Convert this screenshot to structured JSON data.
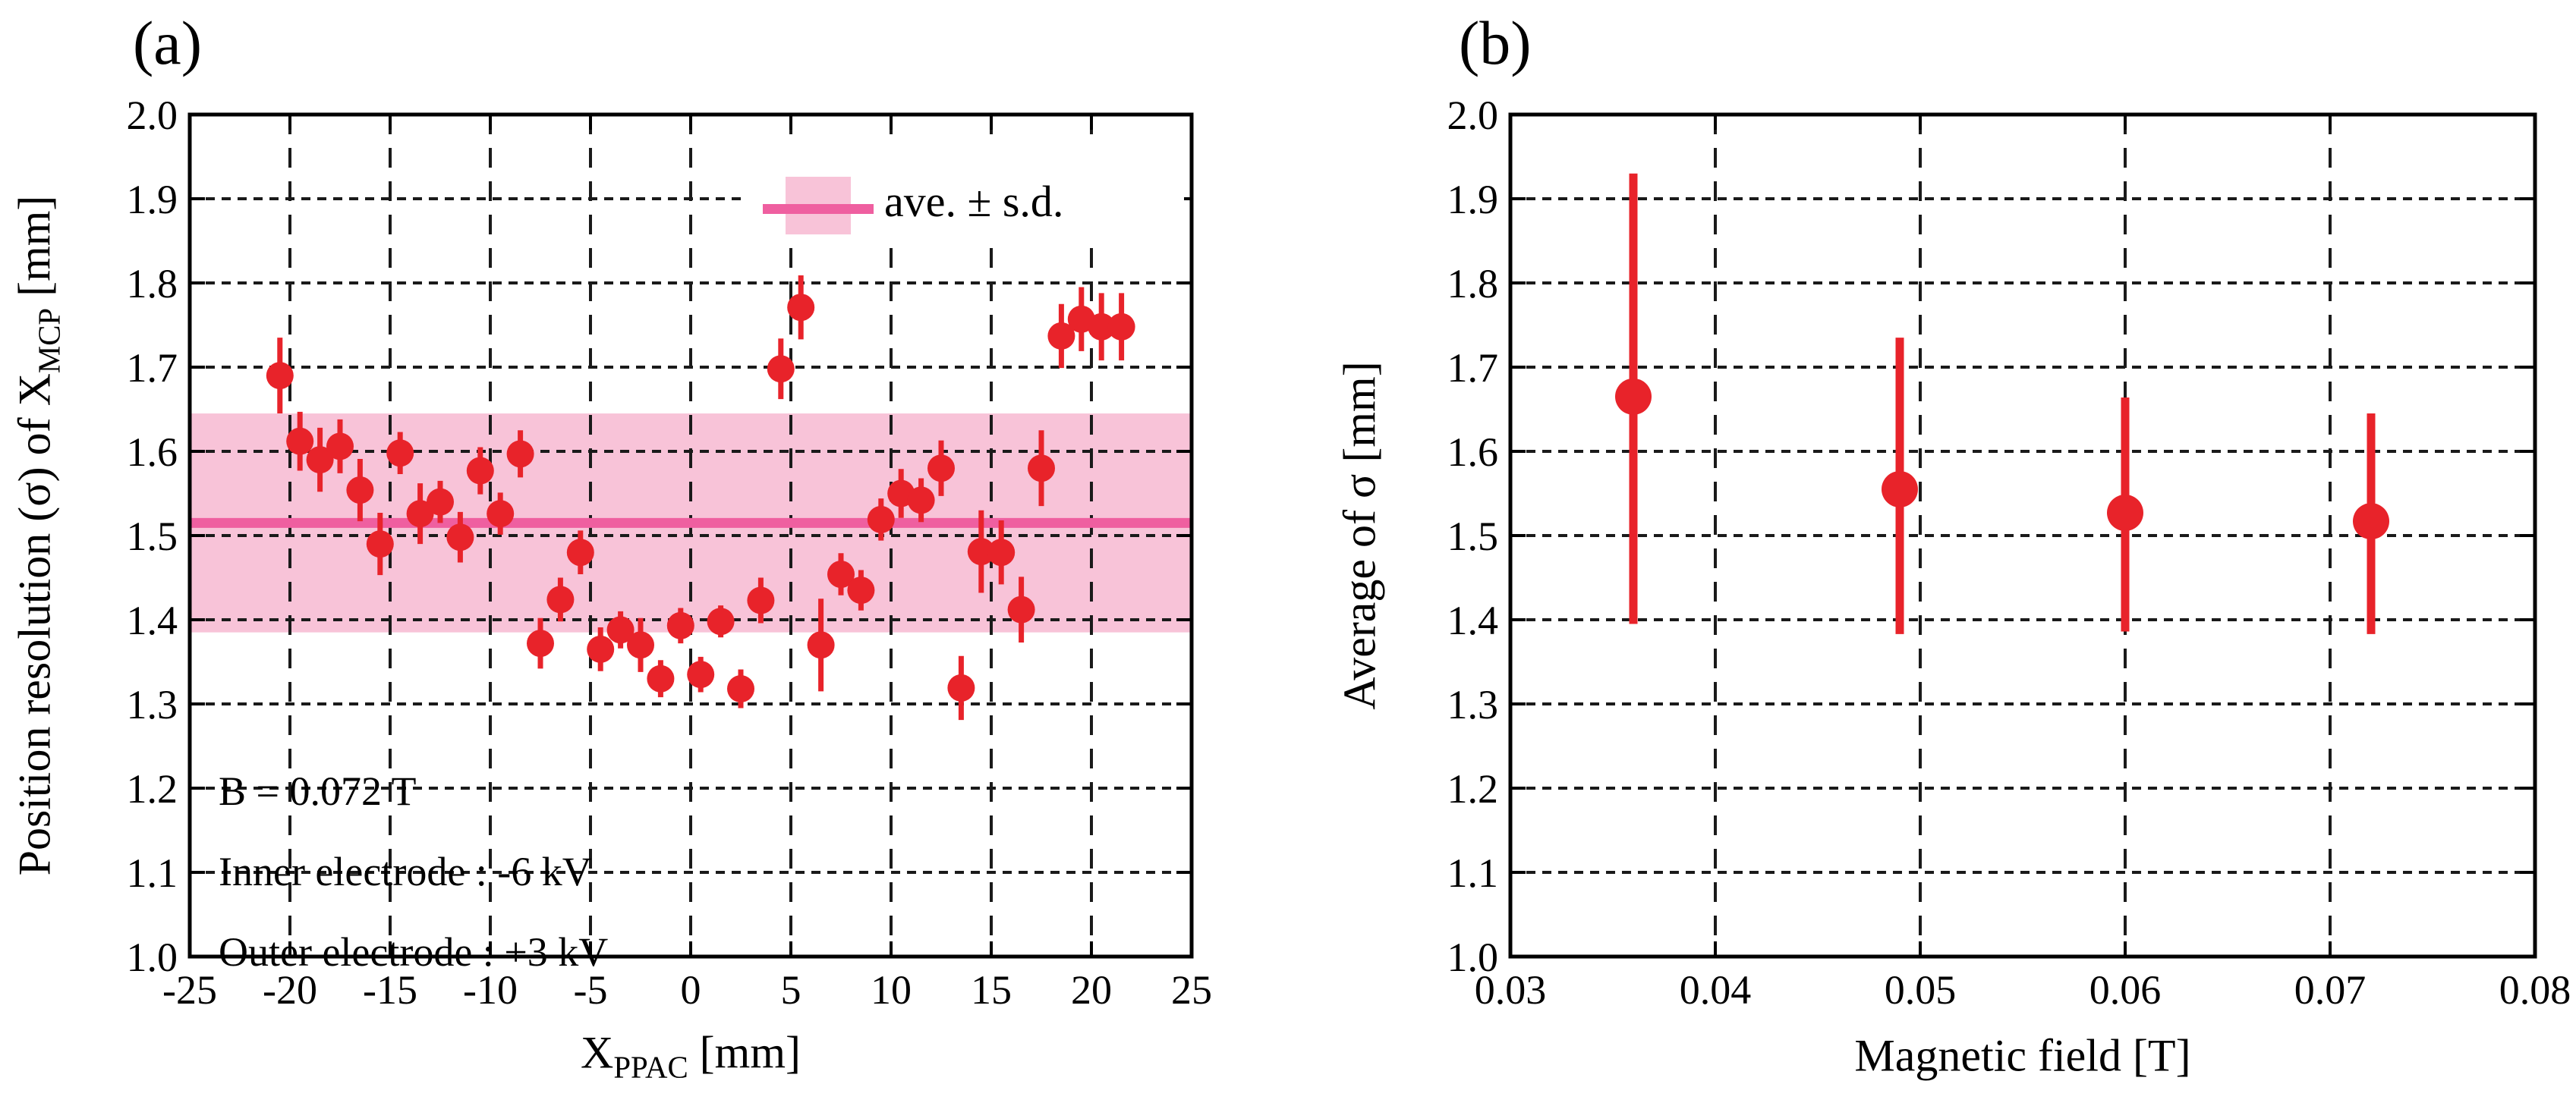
{
  "figure": {
    "panel_a_label": "(a)",
    "panel_b_label": "(b)",
    "colors": {
      "red": "#e8232a",
      "band_fill": "#f8c3d8",
      "band_line": "#ef5fa0",
      "frame": "#000000",
      "grid": "#1a1a1a",
      "text": "#000000",
      "background": "#ffffff"
    }
  },
  "panel_a": {
    "ylabel_pre": "Position resolution (σ) of X",
    "ylabel_sub": "MCP",
    "ylabel_post": " [mm]",
    "xlabel_pre": "X",
    "xlabel_sub": "PPAC",
    "xlabel_post": " [mm]",
    "legend_label": "ave. ± s.d.",
    "annotation_line1": "B = 0.072 T",
    "annotation_line2": "Inner electrode : -6 kV",
    "annotation_line3": "Outer electrode : +3 kV"
  },
  "panel_b": {
    "ylabel": "Average of σ [mm]",
    "xlabel": "Magnetic field [T]"
  },
  "chart_data": [
    {
      "id": "a",
      "type": "scatter",
      "title": "(a)",
      "xlabel": "X_PPAC [mm]",
      "ylabel": "Position resolution (σ) of X_MCP [mm]",
      "xlim": [
        -25,
        25
      ],
      "ylim": [
        1.0,
        2.0
      ],
      "grid": true,
      "xtick_values": [
        -25,
        -20,
        -15,
        -10,
        -5,
        0,
        5,
        10,
        15,
        20,
        25
      ],
      "xtick_labels": [
        "-25",
        "-20",
        "-15",
        "-10",
        "-5",
        "0",
        "5",
        "10",
        "15",
        "20",
        "25"
      ],
      "ytick_values": [
        1.0,
        1.1,
        1.2,
        1.3,
        1.4,
        1.5,
        1.6,
        1.7,
        1.8,
        1.9,
        2.0
      ],
      "ytick_labels": [
        "1.0",
        "1.1",
        "1.2",
        "1.3",
        "1.4",
        "1.5",
        "1.6",
        "1.7",
        "1.8",
        "1.9",
        "2.0"
      ],
      "band": {
        "center": 1.515,
        "low": 1.385,
        "high": 1.645
      },
      "legend": {
        "label": "ave. ± s.d.",
        "position": "top-right"
      },
      "annotation": [
        "B = 0.072 T",
        "Inner electrode : -6 kV",
        "Outer electrode : +3 kV"
      ],
      "x": [
        -20.5,
        -19.5,
        -18.5,
        -17.5,
        -16.5,
        -15.5,
        -14.5,
        -13.5,
        -12.5,
        -11.5,
        -10.5,
        -9.5,
        -8.5,
        -7.5,
        -6.5,
        -5.5,
        -4.5,
        -3.5,
        -2.5,
        -1.5,
        -0.5,
        0.5,
        1.5,
        2.5,
        3.5,
        4.5,
        5.5,
        6.5,
        7.5,
        8.5,
        9.5,
        10.5,
        11.5,
        12.5,
        13.5,
        14.5,
        15.5,
        16.5,
        17.5,
        18.5,
        19.5,
        20.5,
        21.5
      ],
      "y": [
        1.69,
        1.612,
        1.59,
        1.606,
        1.554,
        1.49,
        1.598,
        1.526,
        1.54,
        1.498,
        1.577,
        1.526,
        1.597,
        1.372,
        1.424,
        1.48,
        1.365,
        1.388,
        1.37,
        1.33,
        1.393,
        1.335,
        1.398,
        1.318,
        1.423,
        1.698,
        1.771,
        1.37,
        1.454,
        1.435,
        1.519,
        1.55,
        1.542,
        1.58,
        1.319,
        1.481,
        1.48,
        1.412,
        1.58,
        1.737,
        1.757,
        1.748,
        1.748
      ],
      "yerr": [
        0.045,
        0.035,
        0.038,
        0.032,
        0.037,
        0.037,
        0.025,
        0.036,
        0.025,
        0.03,
        0.028,
        0.025,
        0.028,
        0.03,
        0.026,
        0.026,
        0.026,
        0.022,
        0.032,
        0.022,
        0.021,
        0.021,
        0.019,
        0.023,
        0.027,
        0.036,
        0.038,
        0.055,
        0.025,
        0.024,
        0.025,
        0.029,
        0.026,
        0.033,
        0.038,
        0.049,
        0.038,
        0.039,
        0.045,
        0.038,
        0.038,
        0.04,
        0.04
      ]
    },
    {
      "id": "b",
      "type": "scatter",
      "title": "(b)",
      "xlabel": "Magnetic field [T]",
      "ylabel": "Average of σ [mm]",
      "xlim": [
        0.03,
        0.08
      ],
      "ylim": [
        1.0,
        2.0
      ],
      "grid": true,
      "xtick_values": [
        0.03,
        0.04,
        0.05,
        0.06,
        0.07,
        0.08
      ],
      "xtick_labels": [
        "0.03",
        "0.04",
        "0.05",
        "0.06",
        "0.07",
        "0.08"
      ],
      "ytick_values": [
        1.0,
        1.1,
        1.2,
        1.3,
        1.4,
        1.5,
        1.6,
        1.7,
        1.8,
        1.9,
        2.0
      ],
      "ytick_labels": [
        "1.0",
        "1.1",
        "1.2",
        "1.3",
        "1.4",
        "1.5",
        "1.6",
        "1.7",
        "1.8",
        "1.9",
        "2.0"
      ],
      "x": [
        0.036,
        0.049,
        0.06,
        0.072
      ],
      "y": [
        1.665,
        1.555,
        1.527,
        1.517
      ],
      "y_low": [
        1.395,
        1.383,
        1.386,
        1.383
      ],
      "y_high": [
        1.93,
        1.735,
        1.664,
        1.645
      ]
    }
  ]
}
